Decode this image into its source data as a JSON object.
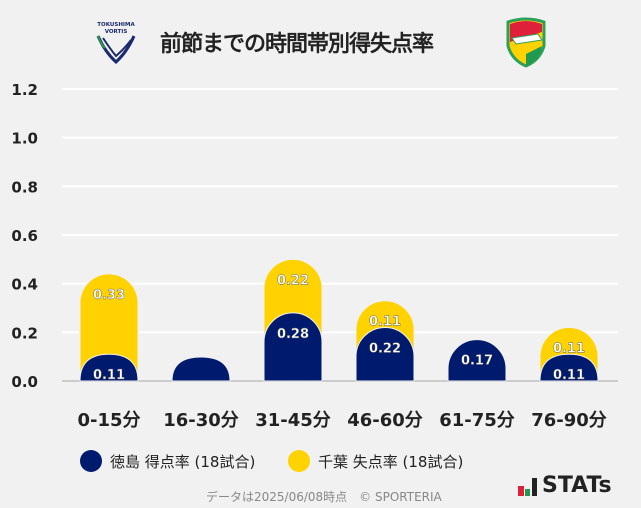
{
  "title": "前節までの時間帯別得失点率",
  "logos": {
    "left": "TOKUSHIMA VORTIS",
    "right": "JEF UNITED"
  },
  "chart_data": {
    "type": "bar",
    "stacking": "overlay",
    "categories": [
      "0-15分",
      "16-30分",
      "31-45分",
      "46-60分",
      "61-75分",
      "76-90分"
    ],
    "series": [
      {
        "name": "徳島 得点率 (18試合)",
        "color": "#001a6e",
        "values": [
          0.11,
          0,
          0.28,
          0.22,
          0.17,
          0.11
        ]
      },
      {
        "name": "千葉 失点率 (18試合)",
        "color": "#ffd200",
        "values": [
          0.33,
          0,
          0.22,
          0.11,
          0,
          0.11
        ]
      }
    ],
    "ylim": [
      0,
      1.2
    ],
    "yticks": [
      "0.0",
      "0.2",
      "0.4",
      "0.6",
      "0.8",
      "1.0",
      "1.2"
    ],
    "grid": true,
    "legend": "bottom"
  },
  "footer": "データは2025/06/08時点　© SPORTERIA",
  "brand": "STATs"
}
